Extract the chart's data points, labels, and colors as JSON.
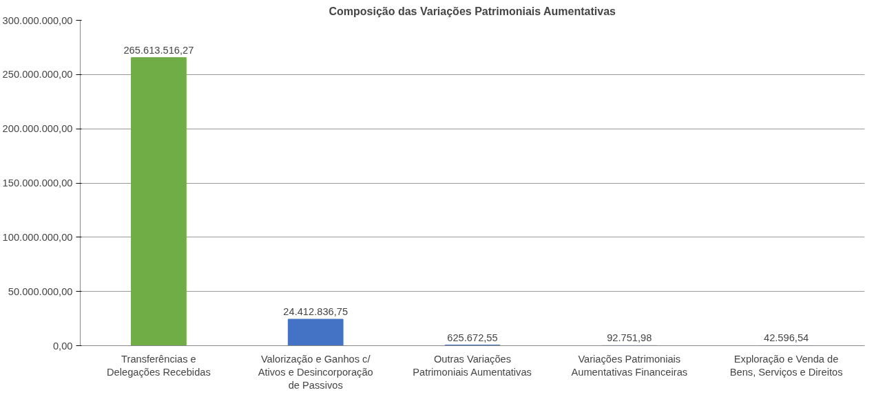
{
  "chart_data": {
    "type": "bar",
    "title": "Composição das Variações Patrimoniais Aumentativas",
    "categories": [
      "Transferências e Delegações Recebidas",
      "Valorização e Ganhos c/ Ativos e Desincorporação de Passivos",
      "Outras Variações Patrimoniais Aumentativas",
      "Variações Patrimoniais Aumentativas Financeiras",
      "Exploração e Venda de Bens, Serviços e Direitos"
    ],
    "values": [
      265613516.27,
      24412836.75,
      625672.55,
      92751.98,
      42596.54
    ],
    "colors": [
      "#70ad47",
      "#4472c4",
      "#4472c4",
      "#4472c4",
      "#4472c4"
    ],
    "value_labels": [
      "265.613.516,27",
      "24.412.836,75",
      "625.672,55",
      "92.751,98",
      "42.596,54"
    ],
    "ylim": [
      0,
      300000000
    ],
    "yticks": [
      {
        "value": 0,
        "label": "0,00"
      },
      {
        "value": 50000000,
        "label": "50.000.000,00"
      },
      {
        "value": 100000000,
        "label": "100.000.000,00"
      },
      {
        "value": 150000000,
        "label": "150.000.000,00"
      },
      {
        "value": 200000000,
        "label": "200.000.000,00"
      },
      {
        "value": 250000000,
        "label": "250.000.000,00"
      },
      {
        "value": 300000000,
        "label": "300.000.000,00"
      }
    ],
    "grid": "y"
  }
}
